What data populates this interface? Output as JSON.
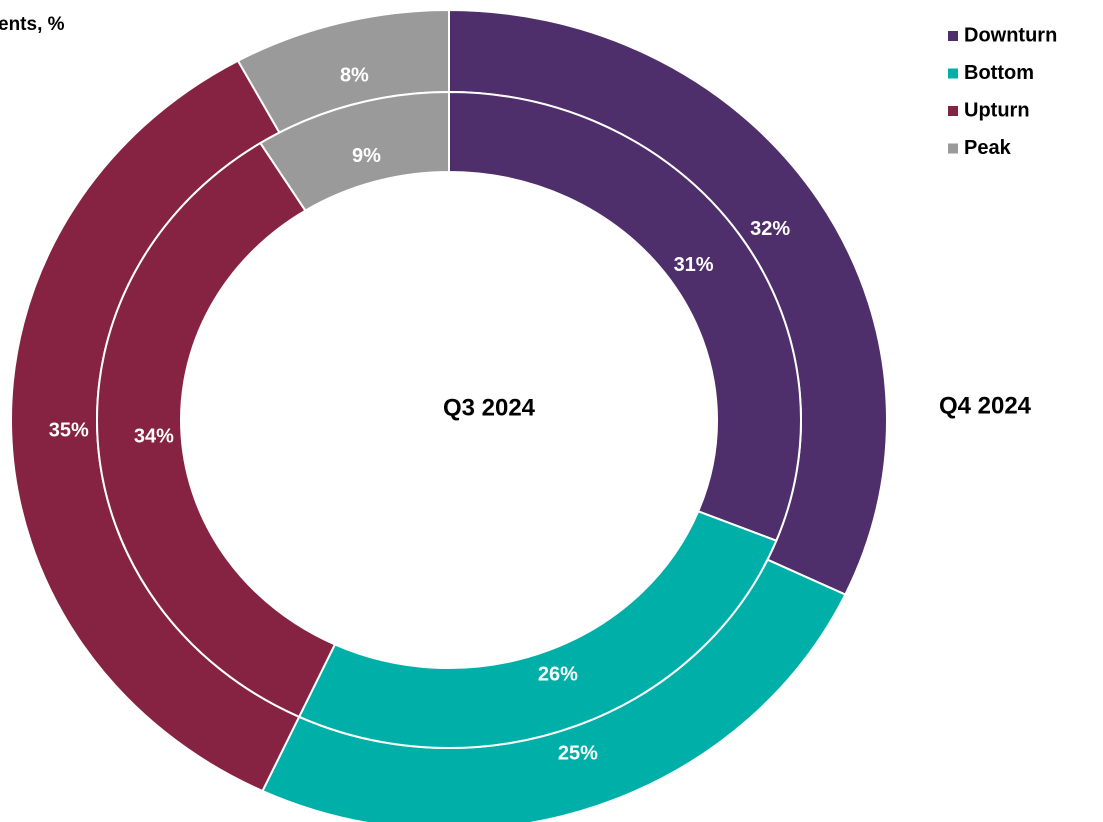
{
  "chart_data": {
    "type": "donut",
    "title": "ents, %",
    "categories": [
      "Downturn",
      "Bottom",
      "Upturn",
      "Peak"
    ],
    "colors": [
      "#4e2f6b",
      "#00b0a8",
      "#862242",
      "#9a9a9a"
    ],
    "series": [
      {
        "name": "Q4 2024",
        "values": [
          32,
          25,
          35,
          8
        ],
        "value_labels": [
          "32%",
          "25%",
          "35%",
          "8%"
        ]
      },
      {
        "name": "Q3 2024",
        "values": [
          31,
          26,
          34,
          9
        ],
        "value_labels": [
          "31%",
          "26%",
          "34%",
          "9%"
        ]
      }
    ],
    "legend": "top-right"
  }
}
